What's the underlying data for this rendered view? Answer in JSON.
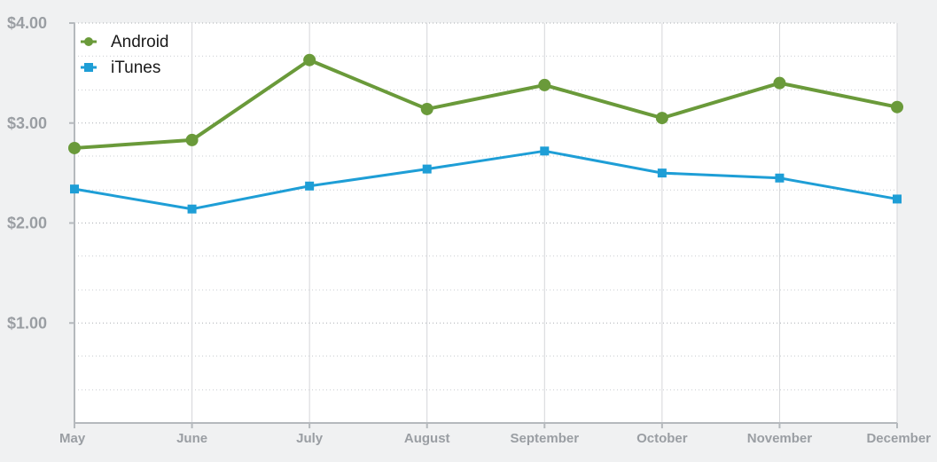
{
  "chart_data": {
    "type": "line",
    "title": "",
    "xlabel": "",
    "ylabel": "",
    "categories": [
      "May",
      "June",
      "July",
      "August",
      "September",
      "October",
      "November",
      "December"
    ],
    "ylim": [
      0,
      4
    ],
    "y_ticks": [
      {
        "value": 1,
        "label": "$1.00"
      },
      {
        "value": 2,
        "label": "$2.00"
      },
      {
        "value": 3,
        "label": "$3.00"
      },
      {
        "value": 4,
        "label": "$4.00"
      }
    ],
    "minor_gridlines": [
      0.33,
      0.67,
      1.33,
      1.67,
      2.33,
      2.67,
      3.33,
      3.67
    ],
    "grid": true,
    "legend_position": "top-left",
    "series": [
      {
        "name": "Android",
        "marker": "circle",
        "color": "#6a9a3a",
        "values": [
          2.75,
          2.83,
          3.63,
          3.14,
          3.38,
          3.05,
          3.4,
          3.16
        ]
      },
      {
        "name": "iTunes",
        "marker": "square",
        "color": "#1e9ed6",
        "values": [
          2.34,
          2.14,
          2.37,
          2.54,
          2.72,
          2.5,
          2.45,
          2.24
        ]
      }
    ]
  }
}
